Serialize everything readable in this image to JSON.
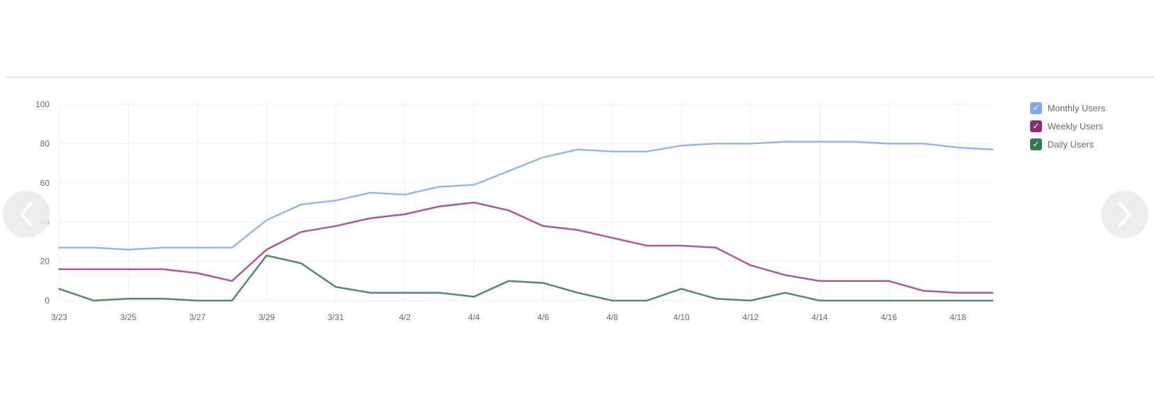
{
  "chart_data": {
    "type": "line",
    "x": [
      "3/23",
      "3/24",
      "3/25",
      "3/26",
      "3/27",
      "3/28",
      "3/29",
      "3/30",
      "3/31",
      "4/1",
      "4/2",
      "4/3",
      "4/4",
      "4/5",
      "4/6",
      "4/7",
      "4/8",
      "4/9",
      "4/10",
      "4/11",
      "4/12",
      "4/13",
      "4/14",
      "4/15",
      "4/16",
      "4/17",
      "4/18",
      "4/19"
    ],
    "x_tick_labels": [
      "3/23",
      "3/25",
      "3/27",
      "3/29",
      "3/31",
      "4/2",
      "4/4",
      "4/6",
      "4/8",
      "4/10",
      "4/12",
      "4/14",
      "4/16",
      "4/18"
    ],
    "y_ticks": [
      "0",
      "20",
      "40",
      "60",
      "80",
      "100"
    ],
    "ylim": [
      0,
      100
    ],
    "grid": true,
    "legend_position": "right",
    "series": [
      {
        "name": "Monthly Users",
        "color": "#98b4f0",
        "values": [
          27,
          27,
          26,
          27,
          27,
          27,
          41,
          49,
          51,
          55,
          54,
          58,
          59,
          66,
          73,
          77,
          76,
          76,
          79,
          80,
          80,
          81,
          81,
          81,
          80,
          80,
          78,
          77
        ]
      },
      {
        "name": "Weekly Users",
        "color": "#b2549a",
        "values": [
          16,
          16,
          16,
          16,
          14,
          10,
          26,
          35,
          38,
          42,
          44,
          48,
          50,
          46,
          38,
          36,
          32,
          28,
          28,
          27,
          18,
          13,
          10,
          10,
          10,
          5,
          4,
          4
        ]
      },
      {
        "name": "Daily Users",
        "color": "#4e8b63",
        "values": [
          6,
          0,
          1,
          1,
          0,
          0,
          23,
          19,
          7,
          4,
          4,
          4,
          2,
          10,
          9,
          4,
          0,
          0,
          6,
          1,
          0,
          4,
          0,
          0,
          0,
          0,
          0,
          0
        ]
      }
    ]
  },
  "legend_checkbox_colors": [
    "#7da7f5",
    "#8e2d6f",
    "#2f7a50"
  ],
  "navigation": {
    "prev_icon": "chevron-left-icon",
    "next_icon": "chevron-right-icon"
  }
}
